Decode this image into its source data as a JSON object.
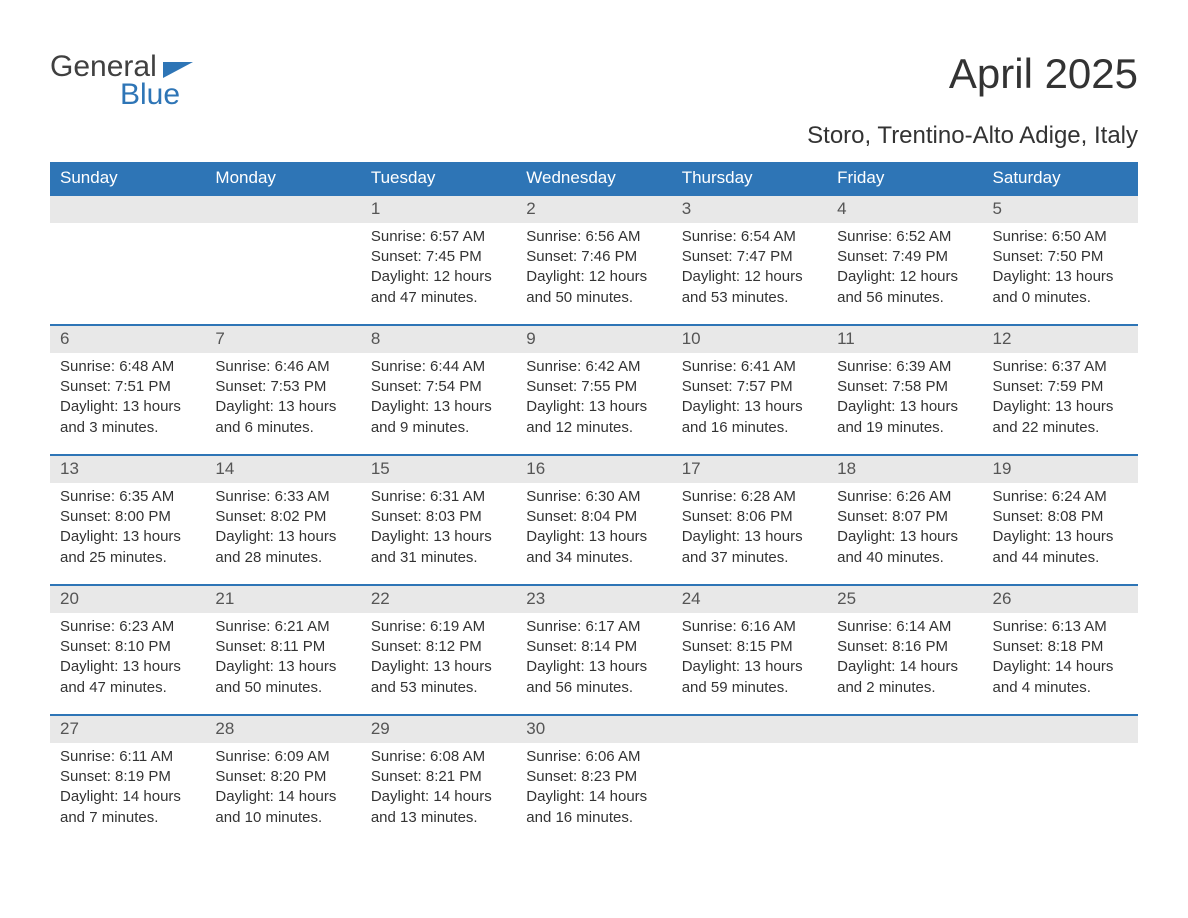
{
  "logo": {
    "general": "General",
    "blue": "Blue"
  },
  "title": "April 2025",
  "location": "Storo, Trentino-Alto Adige, Italy",
  "calendar": {
    "header_bg": "#2e75b6",
    "header_fg": "#ffffff",
    "daynum_bg": "#e8e8e8",
    "border_color": "#2e75b6",
    "day_names": [
      "Sunday",
      "Monday",
      "Tuesday",
      "Wednesday",
      "Thursday",
      "Friday",
      "Saturday"
    ],
    "weeks": [
      [
        null,
        null,
        {
          "n": "1",
          "sunrise": "6:57 AM",
          "sunset": "7:45 PM",
          "dl1": "12 hours",
          "dl2": "and 47 minutes."
        },
        {
          "n": "2",
          "sunrise": "6:56 AM",
          "sunset": "7:46 PM",
          "dl1": "12 hours",
          "dl2": "and 50 minutes."
        },
        {
          "n": "3",
          "sunrise": "6:54 AM",
          "sunset": "7:47 PM",
          "dl1": "12 hours",
          "dl2": "and 53 minutes."
        },
        {
          "n": "4",
          "sunrise": "6:52 AM",
          "sunset": "7:49 PM",
          "dl1": "12 hours",
          "dl2": "and 56 minutes."
        },
        {
          "n": "5",
          "sunrise": "6:50 AM",
          "sunset": "7:50 PM",
          "dl1": "13 hours",
          "dl2": "and 0 minutes."
        }
      ],
      [
        {
          "n": "6",
          "sunrise": "6:48 AM",
          "sunset": "7:51 PM",
          "dl1": "13 hours",
          "dl2": "and 3 minutes."
        },
        {
          "n": "7",
          "sunrise": "6:46 AM",
          "sunset": "7:53 PM",
          "dl1": "13 hours",
          "dl2": "and 6 minutes."
        },
        {
          "n": "8",
          "sunrise": "6:44 AM",
          "sunset": "7:54 PM",
          "dl1": "13 hours",
          "dl2": "and 9 minutes."
        },
        {
          "n": "9",
          "sunrise": "6:42 AM",
          "sunset": "7:55 PM",
          "dl1": "13 hours",
          "dl2": "and 12 minutes."
        },
        {
          "n": "10",
          "sunrise": "6:41 AM",
          "sunset": "7:57 PM",
          "dl1": "13 hours",
          "dl2": "and 16 minutes."
        },
        {
          "n": "11",
          "sunrise": "6:39 AM",
          "sunset": "7:58 PM",
          "dl1": "13 hours",
          "dl2": "and 19 minutes."
        },
        {
          "n": "12",
          "sunrise": "6:37 AM",
          "sunset": "7:59 PM",
          "dl1": "13 hours",
          "dl2": "and 22 minutes."
        }
      ],
      [
        {
          "n": "13",
          "sunrise": "6:35 AM",
          "sunset": "8:00 PM",
          "dl1": "13 hours",
          "dl2": "and 25 minutes."
        },
        {
          "n": "14",
          "sunrise": "6:33 AM",
          "sunset": "8:02 PM",
          "dl1": "13 hours",
          "dl2": "and 28 minutes."
        },
        {
          "n": "15",
          "sunrise": "6:31 AM",
          "sunset": "8:03 PM",
          "dl1": "13 hours",
          "dl2": "and 31 minutes."
        },
        {
          "n": "16",
          "sunrise": "6:30 AM",
          "sunset": "8:04 PM",
          "dl1": "13 hours",
          "dl2": "and 34 minutes."
        },
        {
          "n": "17",
          "sunrise": "6:28 AM",
          "sunset": "8:06 PM",
          "dl1": "13 hours",
          "dl2": "and 37 minutes."
        },
        {
          "n": "18",
          "sunrise": "6:26 AM",
          "sunset": "8:07 PM",
          "dl1": "13 hours",
          "dl2": "and 40 minutes."
        },
        {
          "n": "19",
          "sunrise": "6:24 AM",
          "sunset": "8:08 PM",
          "dl1": "13 hours",
          "dl2": "and 44 minutes."
        }
      ],
      [
        {
          "n": "20",
          "sunrise": "6:23 AM",
          "sunset": "8:10 PM",
          "dl1": "13 hours",
          "dl2": "and 47 minutes."
        },
        {
          "n": "21",
          "sunrise": "6:21 AM",
          "sunset": "8:11 PM",
          "dl1": "13 hours",
          "dl2": "and 50 minutes."
        },
        {
          "n": "22",
          "sunrise": "6:19 AM",
          "sunset": "8:12 PM",
          "dl1": "13 hours",
          "dl2": "and 53 minutes."
        },
        {
          "n": "23",
          "sunrise": "6:17 AM",
          "sunset": "8:14 PM",
          "dl1": "13 hours",
          "dl2": "and 56 minutes."
        },
        {
          "n": "24",
          "sunrise": "6:16 AM",
          "sunset": "8:15 PM",
          "dl1": "13 hours",
          "dl2": "and 59 minutes."
        },
        {
          "n": "25",
          "sunrise": "6:14 AM",
          "sunset": "8:16 PM",
          "dl1": "14 hours",
          "dl2": "and 2 minutes."
        },
        {
          "n": "26",
          "sunrise": "6:13 AM",
          "sunset": "8:18 PM",
          "dl1": "14 hours",
          "dl2": "and 4 minutes."
        }
      ],
      [
        {
          "n": "27",
          "sunrise": "6:11 AM",
          "sunset": "8:19 PM",
          "dl1": "14 hours",
          "dl2": "and 7 minutes."
        },
        {
          "n": "28",
          "sunrise": "6:09 AM",
          "sunset": "8:20 PM",
          "dl1": "14 hours",
          "dl2": "and 10 minutes."
        },
        {
          "n": "29",
          "sunrise": "6:08 AM",
          "sunset": "8:21 PM",
          "dl1": "14 hours",
          "dl2": "and 13 minutes."
        },
        {
          "n": "30",
          "sunrise": "6:06 AM",
          "sunset": "8:23 PM",
          "dl1": "14 hours",
          "dl2": "and 16 minutes."
        },
        null,
        null,
        null
      ]
    ],
    "labels": {
      "sunrise": "Sunrise: ",
      "sunset": "Sunset: ",
      "daylight": "Daylight: "
    }
  }
}
